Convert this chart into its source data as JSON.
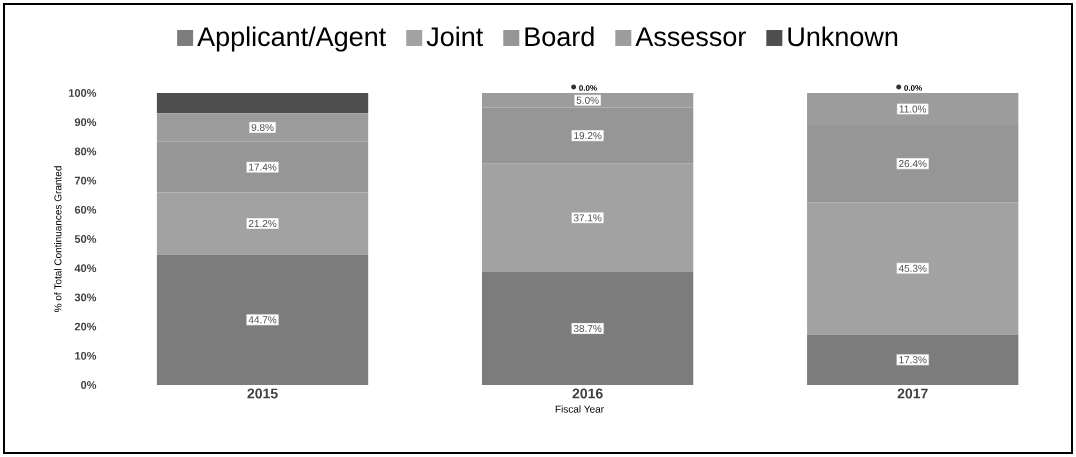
{
  "chart_data": {
    "type": "bar",
    "stacked": true,
    "ylabel": "% of Total Continuances Granted",
    "xlabel": "Fiscal Year",
    "categories": [
      "2015",
      "2016",
      "2017"
    ],
    "ylim": [
      0,
      100
    ],
    "yticks": [
      {
        "value": 0,
        "label": "0%"
      },
      {
        "value": 10,
        "label": "10%"
      },
      {
        "value": 20,
        "label": "20%"
      },
      {
        "value": 30,
        "label": "30%"
      },
      {
        "value": 40,
        "label": "40%"
      },
      {
        "value": 50,
        "label": "50%"
      },
      {
        "value": 60,
        "label": "60%"
      },
      {
        "value": 70,
        "label": "70%"
      },
      {
        "value": 80,
        "label": "80%"
      },
      {
        "value": 90,
        "label": "90%"
      },
      {
        "value": 100,
        "label": "100%"
      }
    ],
    "legend": "top",
    "grid": false,
    "series": [
      {
        "name": "Applicant/Agent",
        "color": "#7c7c7c",
        "values": [
          44.7,
          38.7,
          17.3
        ],
        "value_labels": [
          "44.7%",
          "38.7%",
          "17.3%"
        ]
      },
      {
        "name": "Joint",
        "color": "#a2a2a2",
        "values": [
          21.2,
          37.1,
          45.3
        ],
        "value_labels": [
          "21.2%",
          "37.1%",
          "45.3%"
        ]
      },
      {
        "name": "Board",
        "color": "#969696",
        "values": [
          17.4,
          19.2,
          26.4
        ],
        "value_labels": [
          "17.4%",
          "19.2%",
          "26.4%"
        ]
      },
      {
        "name": "Assessor",
        "color": "#9c9c9c",
        "values": [
          9.8,
          5.0,
          11.0
        ],
        "value_labels": [
          "9.8%",
          "5.0%",
          "11.0%"
        ]
      },
      {
        "name": "Unknown",
        "color": "#4e4e4e",
        "values": [
          6.9,
          0.0,
          0.0
        ],
        "value_labels": [
          null,
          "0.0%",
          "0.0%"
        ]
      }
    ]
  }
}
